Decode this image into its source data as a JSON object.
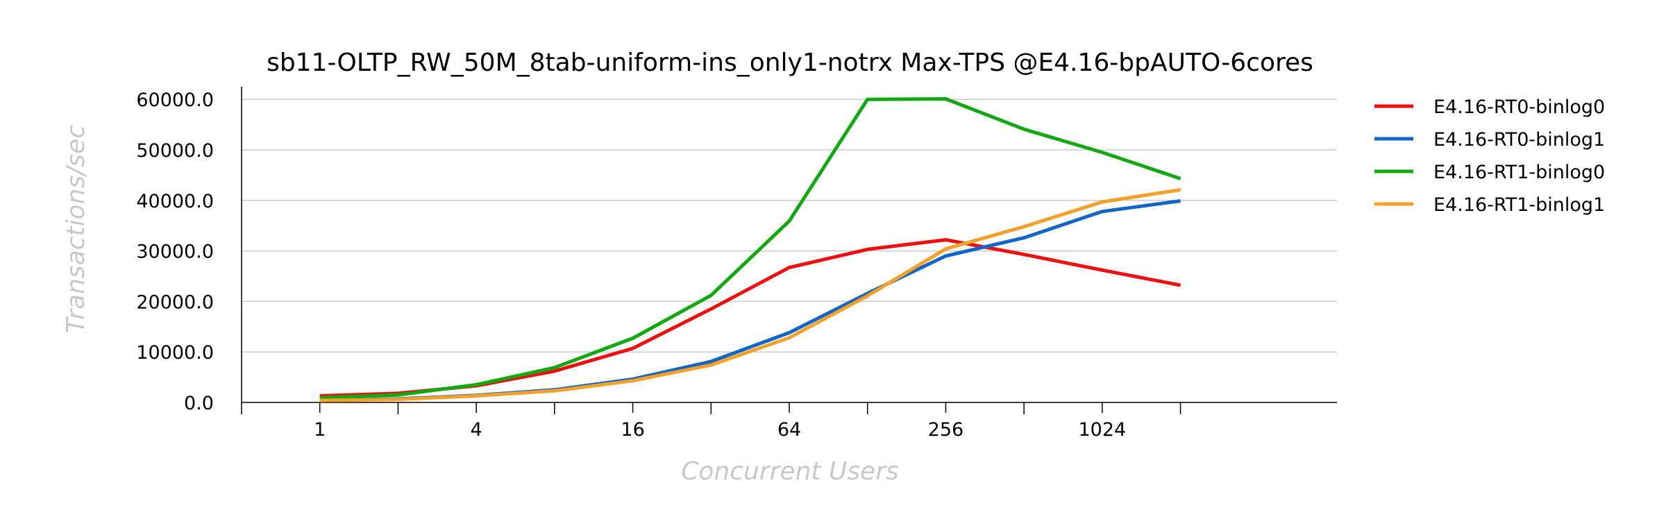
{
  "chart_data": {
    "type": "line",
    "title": "sb11-OLTP_RW_50M_8tab-uniform-ins_only1-notrx Max-TPS @E4.16-bpAUTO-6cores",
    "xlabel": "Concurrent Users",
    "ylabel": "Transactions/sec",
    "x_scale": "log2",
    "x": [
      1,
      2,
      4,
      8,
      16,
      32,
      64,
      128,
      256,
      512,
      1024,
      2048
    ],
    "x_tick_labels": [
      "1",
      "4",
      "16",
      "64",
      "256",
      "1024"
    ],
    "x_tick_values": [
      1,
      4,
      16,
      64,
      256,
      1024
    ],
    "x_minor_ticks": [
      0.5,
      2,
      8,
      32,
      128,
      512,
      2048
    ],
    "xlim": [
      0.5,
      8192
    ],
    "ylim": [
      0,
      62500
    ],
    "y_ticks": [
      0,
      10000,
      20000,
      30000,
      40000,
      50000,
      60000
    ],
    "y_tick_labels": [
      "0.0",
      "10000.0",
      "20000.0",
      "30000.0",
      "40000.0",
      "50000.0",
      "60000.0"
    ],
    "grid": "horizontal",
    "legend_position": "right",
    "series": [
      {
        "name": "E4.16-RT0-binlog0",
        "color": "#f00f0f",
        "values": [
          1300,
          1800,
          3300,
          6200,
          10700,
          18500,
          26700,
          30300,
          32200,
          29300,
          26200,
          23200
        ]
      },
      {
        "name": "E4.16-RT0-binlog1",
        "color": "#1065c8",
        "values": [
          400,
          700,
          1400,
          2500,
          4600,
          8100,
          13800,
          21600,
          29000,
          32600,
          37800,
          39900
        ]
      },
      {
        "name": "E4.16-RT1-binlog0",
        "color": "#10aa10",
        "values": [
          900,
          1500,
          3500,
          6900,
          12700,
          21200,
          35900,
          60000,
          60100,
          54100,
          49500,
          44300
        ]
      },
      {
        "name": "E4.16-RT1-binlog1",
        "color": "#f5a028",
        "values": [
          400,
          600,
          1300,
          2300,
          4300,
          7400,
          12800,
          21100,
          30400,
          34800,
          39700,
          42100
        ]
      }
    ]
  }
}
